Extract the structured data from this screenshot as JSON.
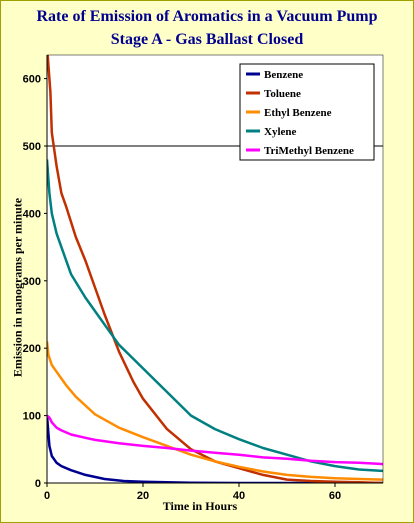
{
  "chart_data": {
    "type": "line",
    "title": "Rate of Emission of Aromatics in a Vacuum Pump",
    "subtitle": "Stage A - Gas Ballast Closed",
    "xlabel": "Time in Hours",
    "ylabel": "Emission in nanograms per minute",
    "xlim": [
      0,
      70
    ],
    "ylim": [
      0,
      600
    ],
    "xticks": [
      0,
      20,
      40,
      60
    ],
    "yticks": [
      0,
      100,
      200,
      300,
      400,
      500,
      600
    ],
    "grid": "horizontal at 500",
    "legend_position": "top-right",
    "series": [
      {
        "name": "Benzene",
        "color": "#000090",
        "x": [
          0,
          0.5,
          1,
          2,
          3,
          5,
          8,
          12,
          16,
          20,
          25,
          30,
          40,
          50,
          60,
          70
        ],
        "y": [
          100,
          55,
          40,
          30,
          25,
          19,
          12,
          6,
          3,
          2,
          1,
          0.5,
          0,
          0,
          0,
          0
        ]
      },
      {
        "name": "Toluene",
        "color": "#c03000",
        "x": [
          0,
          0.3,
          0.7,
          1,
          2,
          3,
          4,
          6,
          8,
          10,
          12,
          15,
          18,
          20,
          25,
          30,
          35,
          40,
          45,
          50,
          55,
          60,
          65,
          70
        ],
        "y": [
          650,
          620,
          580,
          520,
          470,
          430,
          410,
          365,
          330,
          290,
          250,
          195,
          150,
          125,
          80,
          50,
          32,
          22,
          12,
          5,
          3,
          2,
          1,
          0
        ]
      },
      {
        "name": "Ethyl Benzene",
        "color": "#ff8c00",
        "x": [
          0,
          0.3,
          1,
          2,
          4,
          6,
          8,
          10,
          15,
          20,
          25,
          30,
          35,
          40,
          45,
          50,
          55,
          60,
          65,
          70
        ],
        "y": [
          210,
          190,
          175,
          165,
          145,
          128,
          115,
          102,
          82,
          68,
          55,
          42,
          32,
          24,
          17,
          12,
          9,
          7,
          6,
          5
        ]
      },
      {
        "name": "Xylene",
        "color": "#008080",
        "x": [
          0,
          0.5,
          1,
          2,
          3,
          5,
          8,
          10,
          15,
          20,
          25,
          30,
          35,
          40,
          45,
          50,
          55,
          60,
          65,
          70
        ],
        "y": [
          480,
          430,
          400,
          370,
          350,
          310,
          275,
          255,
          205,
          170,
          135,
          100,
          80,
          65,
          52,
          42,
          32,
          25,
          20,
          18
        ]
      },
      {
        "name": "TriMethyl Benzene",
        "color": "#ff00ff",
        "x": [
          0,
          0.5,
          1,
          2,
          3,
          5,
          8,
          10,
          15,
          20,
          25,
          30,
          35,
          40,
          45,
          50,
          55,
          60,
          65,
          70
        ],
        "y": [
          100,
          97,
          90,
          82,
          78,
          72,
          67,
          64,
          59,
          55,
          52,
          48,
          45,
          42,
          38,
          36,
          33,
          31,
          30,
          28
        ]
      }
    ]
  }
}
